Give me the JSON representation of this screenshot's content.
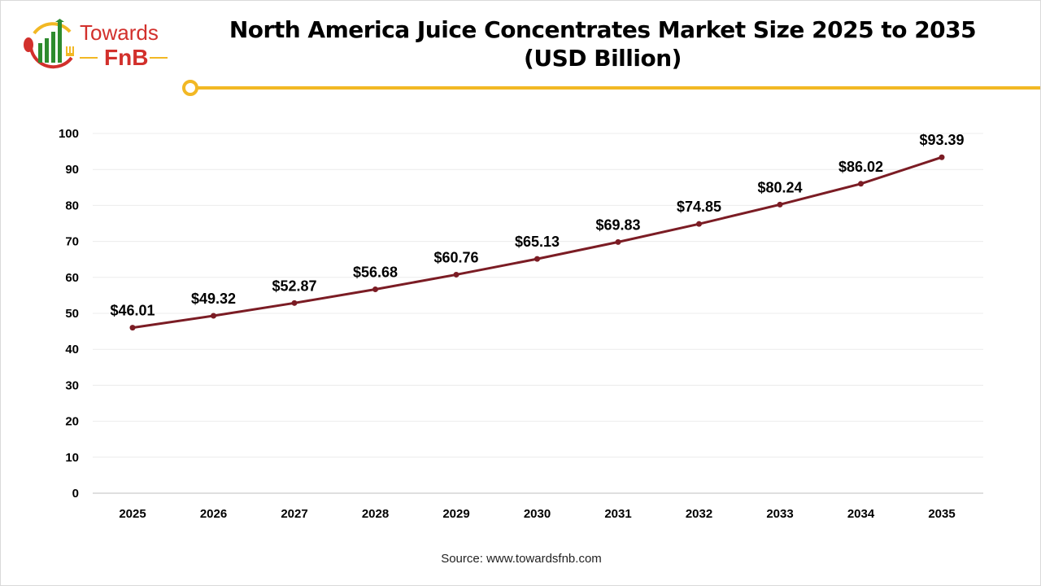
{
  "logo": {
    "line1": "Towards",
    "line2": "FnB"
  },
  "colors": {
    "line": "#7b1c24",
    "accent": "#f2b824",
    "brand_red": "#d2302c",
    "brand_green": "#2e8b2e"
  },
  "source": "Source: www.towardsfnb.com",
  "chart_data": {
    "type": "line",
    "title": "North America Juice Concentrates Market Size 2025 to 2035 (USD Billion)",
    "title_lines": [
      "North America Juice Concentrates Market Size 2025 to 2035",
      "(USD Billion)"
    ],
    "categories": [
      "2025",
      "2026",
      "2027",
      "2028",
      "2029",
      "2030",
      "2031",
      "2032",
      "2033",
      "2034",
      "2035"
    ],
    "values": [
      46.01,
      49.32,
      52.87,
      56.68,
      60.76,
      65.13,
      69.83,
      74.85,
      80.24,
      86.02,
      93.39
    ],
    "data_labels": [
      "$46.01",
      "$49.32",
      "$52.87",
      "$56.68",
      "$60.76",
      "$65.13",
      "$69.83",
      "$74.85",
      "$80.24",
      "$86.02",
      "$93.39"
    ],
    "ylim": [
      0,
      100
    ],
    "yticks": [
      "0",
      "10",
      "20",
      "30",
      "40",
      "50",
      "60",
      "70",
      "80",
      "90",
      "100"
    ],
    "grid": true,
    "legend": "none"
  }
}
